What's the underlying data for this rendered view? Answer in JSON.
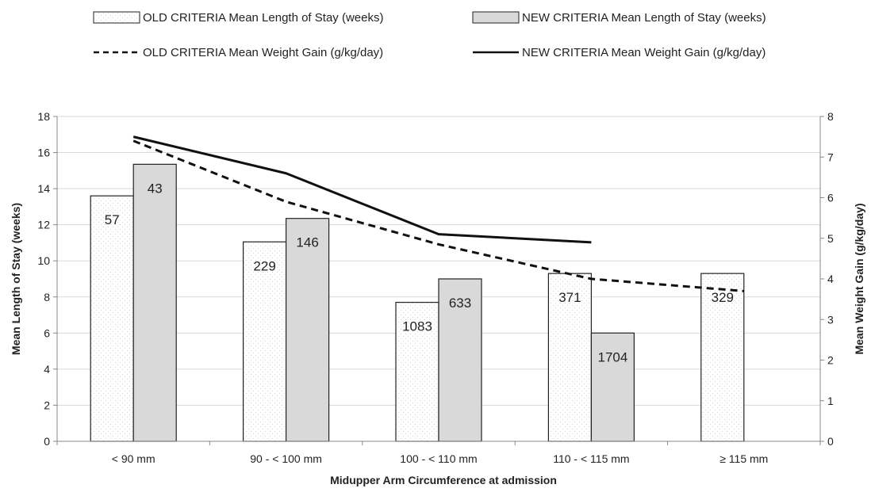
{
  "chart_data": {
    "type": "bar",
    "categories": [
      "< 90 mm",
      "90 - < 100 mm",
      "100 - < 110 mm",
      "110 - < 115 mm",
      "≥ 115 mm"
    ],
    "xlabel": "Midupper Arm Circumference at admission",
    "ylabel": "Mean Length of Stay (weeks)",
    "y2label": "Mean Weight Gain (g/kg/day)",
    "ylim": [
      0,
      18
    ],
    "y_ticks": [
      0,
      2,
      4,
      6,
      8,
      10,
      12,
      14,
      16,
      18
    ],
    "y2lim": [
      0,
      8
    ],
    "y2_ticks": [
      0,
      1,
      2,
      3,
      4,
      5,
      6,
      7,
      8
    ],
    "grid": "horizontal",
    "legend_position": "top",
    "bar_series": [
      {
        "name": "OLD CRITERIA Mean Length of Stay (weeks)",
        "values": [
          13.6,
          11.05,
          7.7,
          9.3,
          9.3
        ],
        "labels": [
          "57",
          "229",
          "1083",
          "371",
          "329"
        ],
        "fill": "#ffffff",
        "pattern": "dots"
      },
      {
        "name": "NEW CRITERIA Mean Length of Stay (weeks)",
        "values": [
          15.35,
          12.35,
          9.0,
          6.0,
          null
        ],
        "labels": [
          "43",
          "146",
          "633",
          "1704",
          ""
        ],
        "fill": "#d9d9d9"
      }
    ],
    "line_series": [
      {
        "name": "OLD CRITERIA Mean Weight Gain (g/kg/day)",
        "axis": "right",
        "style": "dashed",
        "color": "#111111",
        "values": [
          7.4,
          5.9,
          4.85,
          4.0,
          3.7
        ]
      },
      {
        "name": "NEW CRITERIA Mean Weight Gain (g/kg/day)",
        "axis": "right",
        "style": "solid",
        "color": "#111111",
        "values": [
          7.5,
          6.6,
          5.1,
          4.9,
          null
        ]
      }
    ]
  }
}
